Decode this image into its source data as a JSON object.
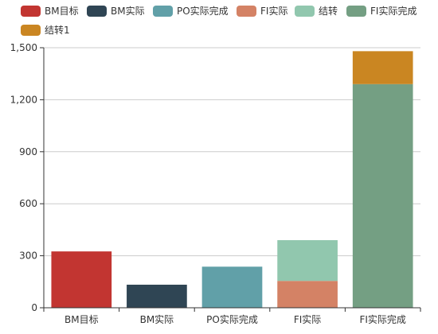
{
  "chart_data": {
    "type": "bar",
    "stacked": true,
    "categories": [
      "BM目标",
      "BM实际",
      "PO实际完成",
      "FI实际",
      "FI实际完成"
    ],
    "ylim": [
      0,
      1500
    ],
    "yticks": [
      0,
      300,
      600,
      900,
      1200,
      1500
    ],
    "ytick_labels": [
      "0",
      "300",
      "600",
      "900",
      "1,200",
      "1,500"
    ],
    "grid": true,
    "legend_position": "top",
    "series": [
      {
        "name": "BM目标",
        "color": "#c23531",
        "values": [
          325,
          0,
          0,
          0,
          0
        ]
      },
      {
        "name": "BM实际",
        "color": "#2f4554",
        "values": [
          0,
          133,
          0,
          0,
          0
        ]
      },
      {
        "name": "PO实际完成",
        "color": "#61a0a8",
        "values": [
          0,
          0,
          237,
          0,
          0
        ]
      },
      {
        "name": "FI实际",
        "color": "#d48265",
        "values": [
          0,
          0,
          0,
          155,
          0
        ]
      },
      {
        "name": "结转",
        "color": "#91c7ae",
        "values": [
          0,
          0,
          0,
          235,
          0
        ]
      },
      {
        "name": "FI实际完成",
        "color": "#749f83",
        "values": [
          0,
          0,
          0,
          0,
          1290
        ]
      },
      {
        "name": "结转1",
        "color": "#ca8622",
        "values": [
          0,
          0,
          0,
          0,
          190
        ]
      }
    ]
  }
}
